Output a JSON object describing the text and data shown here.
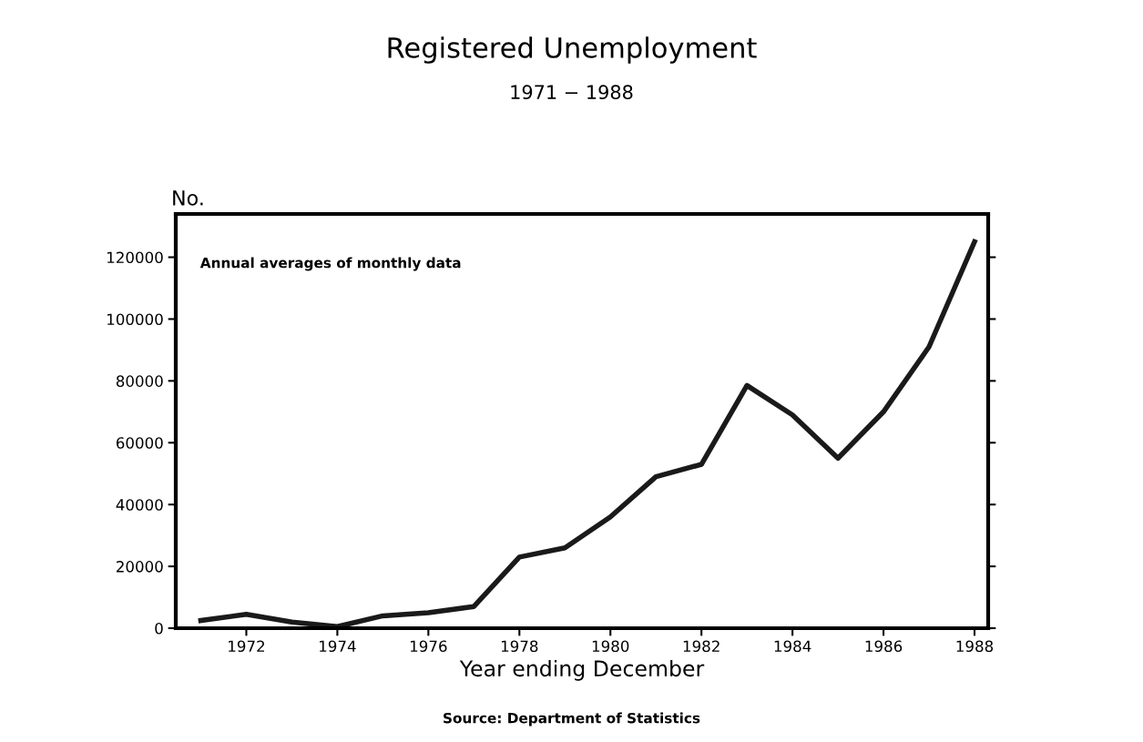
{
  "chart_data": {
    "type": "line",
    "title": "Registered Unemployment",
    "subtitle": "1971 − 1988",
    "xlabel": "Year ending December",
    "ylabel": "No.",
    "x": [
      1971,
      1972,
      1973,
      1974,
      1975,
      1976,
      1977,
      1978,
      1979,
      1980,
      1981,
      1982,
      1983,
      1984,
      1985,
      1986,
      1987,
      1988
    ],
    "series": [
      {
        "color": "#1a1a1a",
        "values": [
          2500,
          4500,
          2000,
          500,
          4000,
          5000,
          7000,
          23000,
          26000,
          36000,
          49000,
          53000,
          78500,
          69000,
          55000,
          70000,
          91000,
          125000
        ]
      }
    ],
    "xlim": [
      1970.45,
      1988.3
    ],
    "xticks": [
      1972,
      1974,
      1976,
      1978,
      1980,
      1982,
      1984,
      1986,
      1988
    ],
    "ylim": [
      0,
      134000
    ],
    "yticks": [
      0,
      20000,
      40000,
      60000,
      80000,
      100000,
      120000
    ],
    "grid": false,
    "legend": false,
    "marker": "none",
    "line_style": "solid",
    "annotations": [
      "Annual averages of monthly data",
      "Source: Department of Statistics"
    ]
  }
}
